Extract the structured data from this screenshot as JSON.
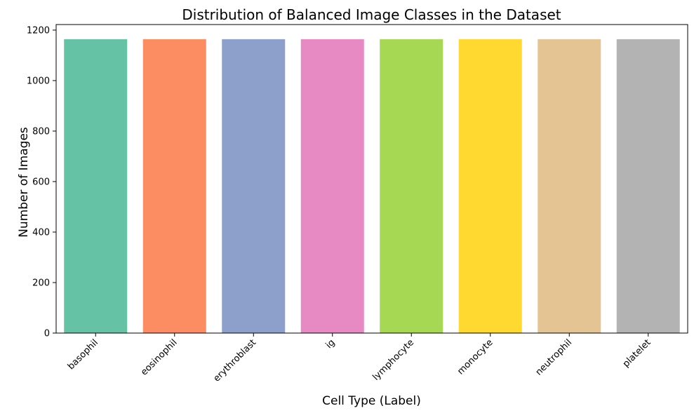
{
  "chart_data": {
    "type": "bar",
    "title": "Distribution of Balanced Image Classes in the Dataset",
    "xlabel": "Cell Type (Label)",
    "ylabel": "Number of Images",
    "categories": [
      "basophil",
      "eosinophil",
      "erythroblast",
      "ig",
      "lymphocyte",
      "monocyte",
      "neutrophil",
      "platelet"
    ],
    "values": [
      1164,
      1164,
      1164,
      1164,
      1164,
      1164,
      1164,
      1164
    ],
    "colors": [
      "#66c2a5",
      "#fc8d62",
      "#8da0cb",
      "#e78ac3",
      "#a6d854",
      "#ffd92f",
      "#e5c494",
      "#b3b3b3"
    ],
    "ylim": [
      0,
      1222
    ],
    "yticks": [
      0,
      200,
      400,
      600,
      800,
      1000,
      1200
    ],
    "grid": false,
    "legend": "none"
  }
}
